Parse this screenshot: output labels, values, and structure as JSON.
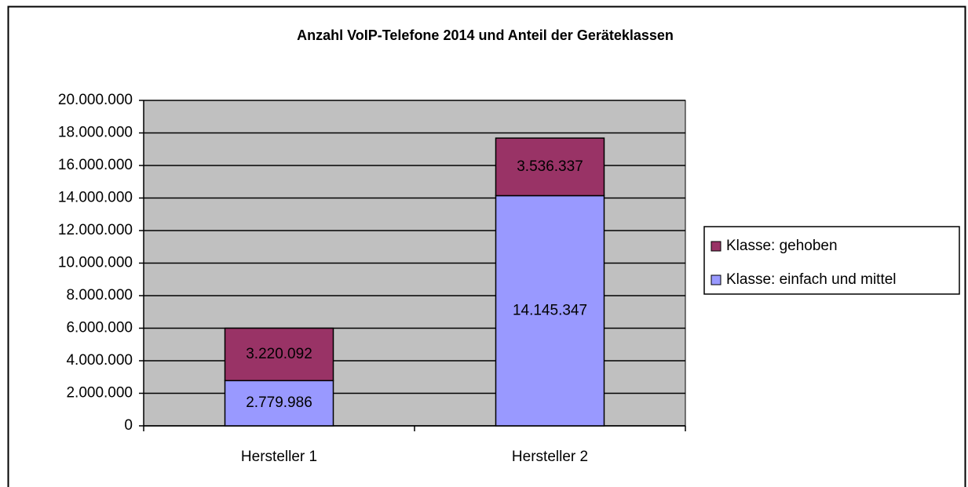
{
  "chart_data": {
    "type": "stacked_bar",
    "title": "Anzahl VoIP-Telefone 2014 und Anteil der Geräteklassen",
    "categories": [
      "Hersteller 1",
      "Hersteller 2"
    ],
    "series": [
      {
        "name": "Klasse: einfach und mittel",
        "color": "#9999ff",
        "values": [
          2779986,
          14145347
        ],
        "value_labels": [
          "2.779.986",
          "14.145.347"
        ]
      },
      {
        "name": "Klasse: gehoben",
        "color": "#993366",
        "values": [
          3220092,
          3536337
        ],
        "value_labels": [
          "3.220.092",
          "3.536.337"
        ]
      }
    ],
    "ylim": [
      0,
      20000000
    ],
    "yticks": [
      0,
      {
        "value": 2000000,
        "label": "2.000.000"
      },
      {
        "value": 4000000,
        "label": "4.000.000"
      },
      {
        "value": 6000000,
        "label": "6.000.000"
      },
      {
        "value": 8000000,
        "label": "8.000.000"
      },
      {
        "value": 10000000,
        "label": "10.000.000"
      },
      {
        "value": 12000000,
        "label": "12.000.000"
      },
      {
        "value": 14000000,
        "label": "14.000.000"
      },
      {
        "value": 16000000,
        "label": "16.000.000"
      },
      {
        "value": 18000000,
        "label": "18.000.000"
      },
      {
        "value": 20000000,
        "label": "20.000.000"
      }
    ],
    "grid": true,
    "legend": "right",
    "plot_background": "#c0c0c0"
  }
}
